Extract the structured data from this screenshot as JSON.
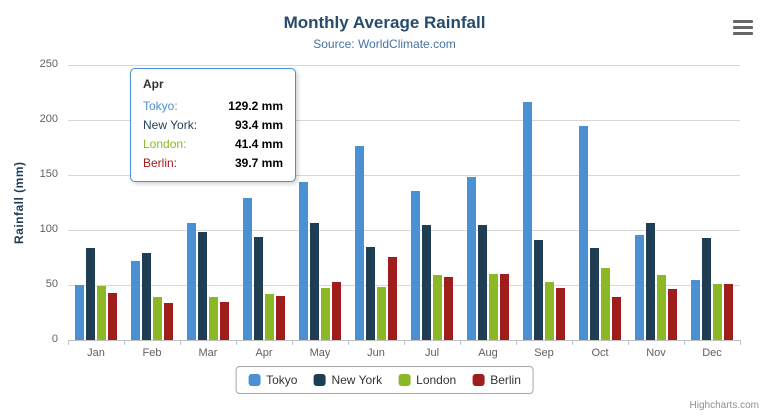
{
  "title": "Monthly Average Rainfall",
  "subtitle": "Source: WorldClimate.com",
  "credits": "Highcharts.com",
  "colors": {
    "title_text": "#274b6d",
    "subtitle_text": "#4572a7",
    "axis_label_text": "#606060",
    "y_axis_title_text": "#1d3c55",
    "gridline": "#d8d8d8",
    "tooltip_border": "#4a90d2",
    "legend_border": "#a7a7a7",
    "credits_text": "#909090"
  },
  "icons": {
    "export_menu": "hamburger-icon"
  },
  "chart_data": {
    "type": "bar",
    "orientation": "vertical",
    "title": "Monthly Average Rainfall",
    "subtitle": "Source: WorldClimate.com",
    "xlabel": "",
    "ylabel": "Rainfall (mm)",
    "ylim": [
      0,
      250
    ],
    "yticks": [
      0,
      50,
      100,
      150,
      200,
      250
    ],
    "grid": true,
    "legend_position": "bottom",
    "categories": [
      "Jan",
      "Feb",
      "Mar",
      "Apr",
      "May",
      "Jun",
      "Jul",
      "Aug",
      "Sep",
      "Oct",
      "Nov",
      "Dec"
    ],
    "series": [
      {
        "name": "Tokyo",
        "color": "#4a90d2",
        "values": [
          49.9,
          71.5,
          106.4,
          129.2,
          144.0,
          176.0,
          135.6,
          148.5,
          216.4,
          194.1,
          95.6,
          54.4
        ]
      },
      {
        "name": "New York",
        "color": "#1f3e53",
        "values": [
          83.6,
          78.8,
          98.5,
          93.4,
          106.0,
          84.5,
          105.0,
          104.3,
          91.2,
          83.5,
          106.6,
          92.3
        ]
      },
      {
        "name": "London",
        "color": "#8cb826",
        "values": [
          48.9,
          38.8,
          39.3,
          41.4,
          47.0,
          48.3,
          59.0,
          59.6,
          52.4,
          65.2,
          59.3,
          51.2
        ]
      },
      {
        "name": "Berlin",
        "color": "#a01d1d",
        "values": [
          42.4,
          33.2,
          34.5,
          39.7,
          52.6,
          75.5,
          57.4,
          60.4,
          47.6,
          39.1,
          46.8,
          51.1
        ]
      }
    ]
  },
  "tooltip": {
    "category": "Apr",
    "rows": [
      {
        "name": "Tokyo",
        "value": "129.2 mm"
      },
      {
        "name": "New York",
        "value": "93.4 mm"
      },
      {
        "name": "London",
        "value": "41.4 mm"
      },
      {
        "name": "Berlin",
        "value": "39.7 mm"
      }
    ]
  }
}
